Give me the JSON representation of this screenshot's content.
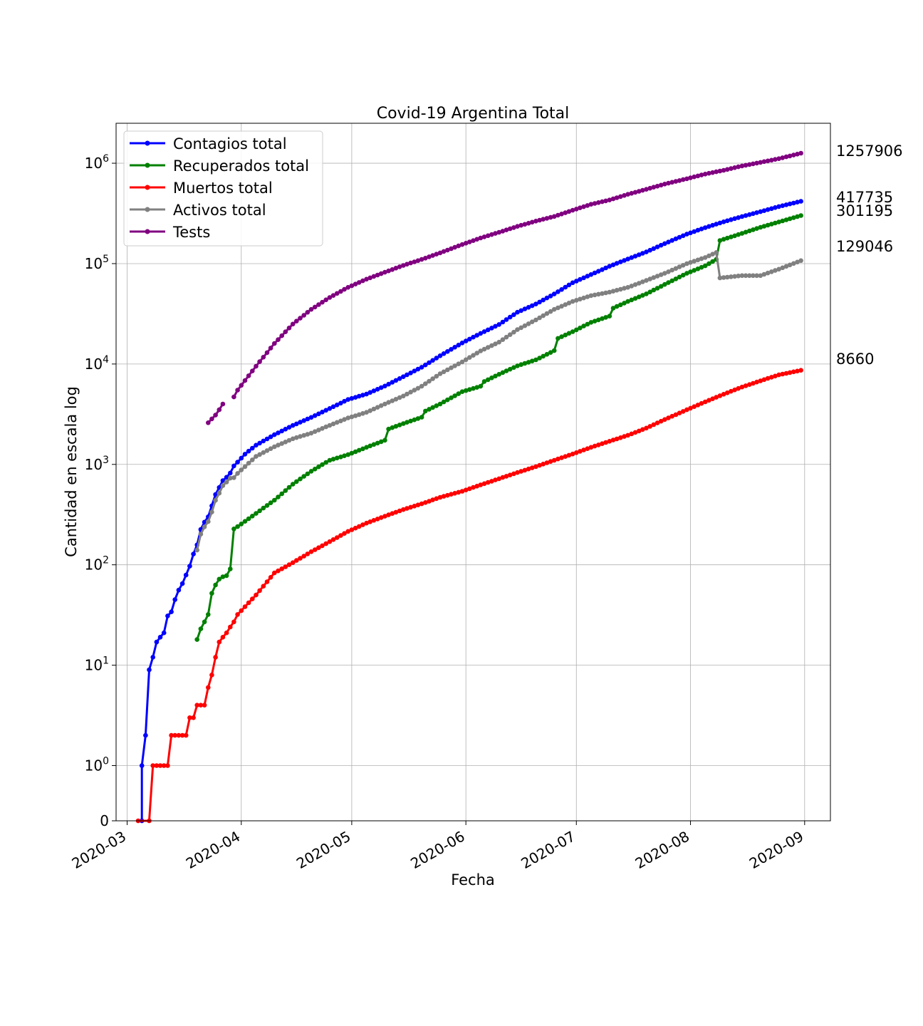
{
  "chart_data": {
    "type": "line",
    "title": "Covid-19 Argentina Total",
    "xlabel": "Fecha",
    "ylabel": "Cantidad en escala log",
    "y_scale": "symlog",
    "ylim": [
      0,
      2500000
    ],
    "xlim": [
      "2020-02-27",
      "2020-09-08"
    ],
    "grid": true,
    "legend_position": "top-left",
    "x_ticks": [
      "2020-03",
      "2020-04",
      "2020-05",
      "2020-06",
      "2020-07",
      "2020-08",
      "2020-09"
    ],
    "x_tick_dates": [
      "2020-03-01",
      "2020-04-01",
      "2020-05-01",
      "2020-06-01",
      "2020-07-01",
      "2020-08-01",
      "2020-09-01"
    ],
    "y_ticks": [
      {
        "value": 0,
        "base": "0",
        "exp": ""
      },
      {
        "value": 1,
        "base": "10",
        "exp": "0"
      },
      {
        "value": 10,
        "base": "10",
        "exp": "1"
      },
      {
        "value": 100,
        "base": "10",
        "exp": "2"
      },
      {
        "value": 1000,
        "base": "10",
        "exp": "3"
      },
      {
        "value": 10000,
        "base": "10",
        "exp": "4"
      },
      {
        "value": 100000,
        "base": "10",
        "exp": "5"
      },
      {
        "value": 1000000,
        "base": "10",
        "exp": "6"
      }
    ],
    "end_labels": [
      "1257906",
      "417735",
      "301195",
      "129046",
      "8660"
    ],
    "series": [
      {
        "name": "Contagios total",
        "color": "#0000ff",
        "points": [
          [
            "2020-03-05",
            0
          ],
          [
            "2020-03-05",
            1
          ],
          [
            "2020-03-06",
            2
          ],
          [
            "2020-03-07",
            9
          ],
          [
            "2020-03-08",
            12
          ],
          [
            "2020-03-09",
            17
          ],
          [
            "2020-03-10",
            19
          ],
          [
            "2020-03-11",
            21
          ],
          [
            "2020-03-12",
            31
          ],
          [
            "2020-03-13",
            34
          ],
          [
            "2020-03-14",
            45
          ],
          [
            "2020-03-15",
            56
          ],
          [
            "2020-03-16",
            65
          ],
          [
            "2020-03-17",
            79
          ],
          [
            "2020-03-18",
            97
          ],
          [
            "2020-03-19",
            128
          ],
          [
            "2020-03-20",
            158
          ],
          [
            "2020-03-21",
            225
          ],
          [
            "2020-03-22",
            266
          ],
          [
            "2020-03-23",
            301
          ],
          [
            "2020-03-24",
            387
          ],
          [
            "2020-03-25",
            502
          ],
          [
            "2020-03-26",
            589
          ],
          [
            "2020-03-27",
            690
          ],
          [
            "2020-03-28",
            745
          ],
          [
            "2020-03-29",
            820
          ],
          [
            "2020-03-30",
            966
          ],
          [
            "2020-03-31",
            1054
          ],
          [
            "2020-04-02",
            1265
          ],
          [
            "2020-04-05",
            1554
          ],
          [
            "2020-04-10",
            1975
          ],
          [
            "2020-04-15",
            2443
          ],
          [
            "2020-04-20",
            2941
          ],
          [
            "2020-04-25",
            3607
          ],
          [
            "2020-04-30",
            4428
          ],
          [
            "2020-05-05",
            5020
          ],
          [
            "2020-05-10",
            6034
          ],
          [
            "2020-05-15",
            7479
          ],
          [
            "2020-05-20",
            9283
          ],
          [
            "2020-05-25",
            12076
          ],
          [
            "2020-05-31",
            16214
          ],
          [
            "2020-06-05",
            20197
          ],
          [
            "2020-06-10",
            24761
          ],
          [
            "2020-06-15",
            32785
          ],
          [
            "2020-06-20",
            39570
          ],
          [
            "2020-06-25",
            49851
          ],
          [
            "2020-06-30",
            64530
          ],
          [
            "2020-07-05",
            77815
          ],
          [
            "2020-07-10",
            94060
          ],
          [
            "2020-07-15",
            111160
          ],
          [
            "2020-07-20",
            130774
          ],
          [
            "2020-07-25",
            158334
          ],
          [
            "2020-07-31",
            196543
          ],
          [
            "2020-08-05",
            228195
          ],
          [
            "2020-08-10",
            260911
          ],
          [
            "2020-08-15",
            294569
          ],
          [
            "2020-08-20",
            329043
          ],
          [
            "2020-08-25",
            370175
          ],
          [
            "2020-08-31",
            417735
          ]
        ]
      },
      {
        "name": "Recuperados total",
        "color": "#008000",
        "points": [
          [
            "2020-03-20",
            18
          ],
          [
            "2020-03-21",
            23
          ],
          [
            "2020-03-22",
            27
          ],
          [
            "2020-03-23",
            32
          ],
          [
            "2020-03-24",
            52
          ],
          [
            "2020-03-25",
            63
          ],
          [
            "2020-03-26",
            72
          ],
          [
            "2020-03-27",
            76
          ],
          [
            "2020-03-28",
            78
          ],
          [
            "2020-03-29",
            91
          ],
          [
            "2020-03-30",
            228
          ],
          [
            "2020-03-31",
            240
          ],
          [
            "2020-04-05",
            325
          ],
          [
            "2020-04-10",
            440
          ],
          [
            "2020-04-15",
            636
          ],
          [
            "2020-04-20",
            855
          ],
          [
            "2020-04-25",
            1100
          ],
          [
            "2020-04-30",
            1250
          ],
          [
            "2020-05-05",
            1480
          ],
          [
            "2020-05-10",
            1740
          ],
          [
            "2020-05-11",
            2250
          ],
          [
            "2020-05-15",
            2550
          ],
          [
            "2020-05-20",
            2950
          ],
          [
            "2020-05-21",
            3400
          ],
          [
            "2020-05-25",
            4000
          ],
          [
            "2020-05-31",
            5300
          ],
          [
            "2020-06-05",
            6000
          ],
          [
            "2020-06-06",
            6700
          ],
          [
            "2020-06-10",
            7900
          ],
          [
            "2020-06-15",
            9600
          ],
          [
            "2020-06-20",
            11000
          ],
          [
            "2020-06-25",
            13600
          ],
          [
            "2020-06-26",
            18000
          ],
          [
            "2020-06-30",
            21000
          ],
          [
            "2020-07-05",
            26000
          ],
          [
            "2020-07-10",
            30000
          ],
          [
            "2020-07-11",
            36000
          ],
          [
            "2020-07-15",
            42000
          ],
          [
            "2020-07-20",
            50000
          ],
          [
            "2020-07-25",
            62000
          ],
          [
            "2020-07-31",
            80000
          ],
          [
            "2020-08-05",
            95000
          ],
          [
            "2020-08-08",
            110000
          ],
          [
            "2020-08-09",
            170000
          ],
          [
            "2020-08-15",
            200000
          ],
          [
            "2020-08-20",
            230000
          ],
          [
            "2020-08-25",
            260000
          ],
          [
            "2020-08-31",
            301195
          ]
        ]
      },
      {
        "name": "Muertos total",
        "color": "#ff0000",
        "points": [
          [
            "2020-03-04",
            0
          ],
          [
            "2020-03-07",
            0
          ],
          [
            "2020-03-08",
            1
          ],
          [
            "2020-03-12",
            1
          ],
          [
            "2020-03-13",
            2
          ],
          [
            "2020-03-17",
            2
          ],
          [
            "2020-03-18",
            3
          ],
          [
            "2020-03-19",
            3
          ],
          [
            "2020-03-20",
            4
          ],
          [
            "2020-03-22",
            4
          ],
          [
            "2020-03-23",
            6
          ],
          [
            "2020-03-24",
            8
          ],
          [
            "2020-03-25",
            12
          ],
          [
            "2020-03-26",
            17
          ],
          [
            "2020-03-27",
            19
          ],
          [
            "2020-03-28",
            21
          ],
          [
            "2020-03-29",
            24
          ],
          [
            "2020-03-30",
            27
          ],
          [
            "2020-03-31",
            32
          ],
          [
            "2020-04-05",
            50
          ],
          [
            "2020-04-10",
            83
          ],
          [
            "2020-04-15",
            105
          ],
          [
            "2020-04-20",
            135
          ],
          [
            "2020-04-25",
            170
          ],
          [
            "2020-04-30",
            215
          ],
          [
            "2020-05-05",
            260
          ],
          [
            "2020-05-10",
            305
          ],
          [
            "2020-05-15",
            355
          ],
          [
            "2020-05-20",
            405
          ],
          [
            "2020-05-25",
            470
          ],
          [
            "2020-05-31",
            540
          ],
          [
            "2020-06-05",
            625
          ],
          [
            "2020-06-10",
            720
          ],
          [
            "2020-06-15",
            830
          ],
          [
            "2020-06-20",
            950
          ],
          [
            "2020-06-25",
            1100
          ],
          [
            "2020-06-30",
            1270
          ],
          [
            "2020-07-05",
            1480
          ],
          [
            "2020-07-10",
            1700
          ],
          [
            "2020-07-15",
            1950
          ],
          [
            "2020-07-20",
            2300
          ],
          [
            "2020-07-25",
            2800
          ],
          [
            "2020-07-31",
            3500
          ],
          [
            "2020-08-05",
            4200
          ],
          [
            "2020-08-10",
            5000
          ],
          [
            "2020-08-15",
            5900
          ],
          [
            "2020-08-20",
            6800
          ],
          [
            "2020-08-25",
            7800
          ],
          [
            "2020-08-31",
            8660
          ]
        ]
      },
      {
        "name": "Activos total",
        "color": "#808080",
        "points": [
          [
            "2020-03-20",
            140
          ],
          [
            "2020-03-21",
            202
          ],
          [
            "2020-03-22",
            239
          ],
          [
            "2020-03-23",
            269
          ],
          [
            "2020-03-24",
            335
          ],
          [
            "2020-03-25",
            439
          ],
          [
            "2020-03-26",
            517
          ],
          [
            "2020-03-27",
            614
          ],
          [
            "2020-03-28",
            667
          ],
          [
            "2020-03-29",
            729
          ],
          [
            "2020-03-30",
            738
          ],
          [
            "2020-03-31",
            814
          ],
          [
            "2020-04-05",
            1200
          ],
          [
            "2020-04-10",
            1500
          ],
          [
            "2020-04-15",
            1800
          ],
          [
            "2020-04-20",
            2050
          ],
          [
            "2020-04-25",
            2450
          ],
          [
            "2020-04-30",
            2900
          ],
          [
            "2020-05-05",
            3300
          ],
          [
            "2020-05-10",
            4000
          ],
          [
            "2020-05-15",
            4800
          ],
          [
            "2020-05-20",
            6000
          ],
          [
            "2020-05-25",
            8000
          ],
          [
            "2020-05-31",
            10500
          ],
          [
            "2020-06-05",
            13500
          ],
          [
            "2020-06-10",
            16500
          ],
          [
            "2020-06-15",
            22000
          ],
          [
            "2020-06-20",
            27500
          ],
          [
            "2020-06-25",
            35000
          ],
          [
            "2020-06-30",
            42000
          ],
          [
            "2020-07-05",
            48000
          ],
          [
            "2020-07-10",
            52000
          ],
          [
            "2020-07-15",
            58000
          ],
          [
            "2020-07-20",
            68000
          ],
          [
            "2020-07-25",
            80000
          ],
          [
            "2020-07-31",
            100000
          ],
          [
            "2020-08-05",
            115000
          ],
          [
            "2020-08-08",
            129046
          ],
          [
            "2020-08-09",
            72000
          ],
          [
            "2020-08-15",
            76000
          ],
          [
            "2020-08-20",
            76000
          ],
          [
            "2020-08-25",
            88000
          ],
          [
            "2020-08-31",
            107000
          ]
        ]
      },
      {
        "name": "Tests",
        "color": "#800080",
        "points": [
          [
            "2020-03-23",
            2600
          ],
          [
            "2020-03-25",
            3100
          ],
          [
            "2020-03-26",
            3500
          ],
          [
            "2020-03-27",
            4000
          ],
          null,
          [
            "2020-03-30",
            4700
          ],
          [
            "2020-03-31",
            5500
          ],
          [
            "2020-04-05",
            9500
          ],
          [
            "2020-04-10",
            16000
          ],
          [
            "2020-04-15",
            25000
          ],
          [
            "2020-04-20",
            35000
          ],
          [
            "2020-04-25",
            46000
          ],
          [
            "2020-04-30",
            58000
          ],
          [
            "2020-05-05",
            70000
          ],
          [
            "2020-05-10",
            82000
          ],
          [
            "2020-05-15",
            96000
          ],
          [
            "2020-05-20",
            110000
          ],
          [
            "2020-05-25",
            128000
          ],
          [
            "2020-05-31",
            155000
          ],
          [
            "2020-06-05",
            180000
          ],
          [
            "2020-06-10",
            205000
          ],
          [
            "2020-06-15",
            235000
          ],
          [
            "2020-06-20",
            265000
          ],
          [
            "2020-06-25",
            295000
          ],
          [
            "2020-06-30",
            340000
          ],
          [
            "2020-07-05",
            390000
          ],
          [
            "2020-07-10",
            430000
          ],
          [
            "2020-07-15",
            490000
          ],
          [
            "2020-07-20",
            550000
          ],
          [
            "2020-07-25",
            620000
          ],
          [
            "2020-07-31",
            700000
          ],
          [
            "2020-08-05",
            780000
          ],
          [
            "2020-08-10",
            850000
          ],
          [
            "2020-08-15",
            940000
          ],
          [
            "2020-08-20",
            1020000
          ],
          [
            "2020-08-25",
            1110000
          ],
          [
            "2020-08-31",
            1257906
          ]
        ]
      }
    ]
  }
}
